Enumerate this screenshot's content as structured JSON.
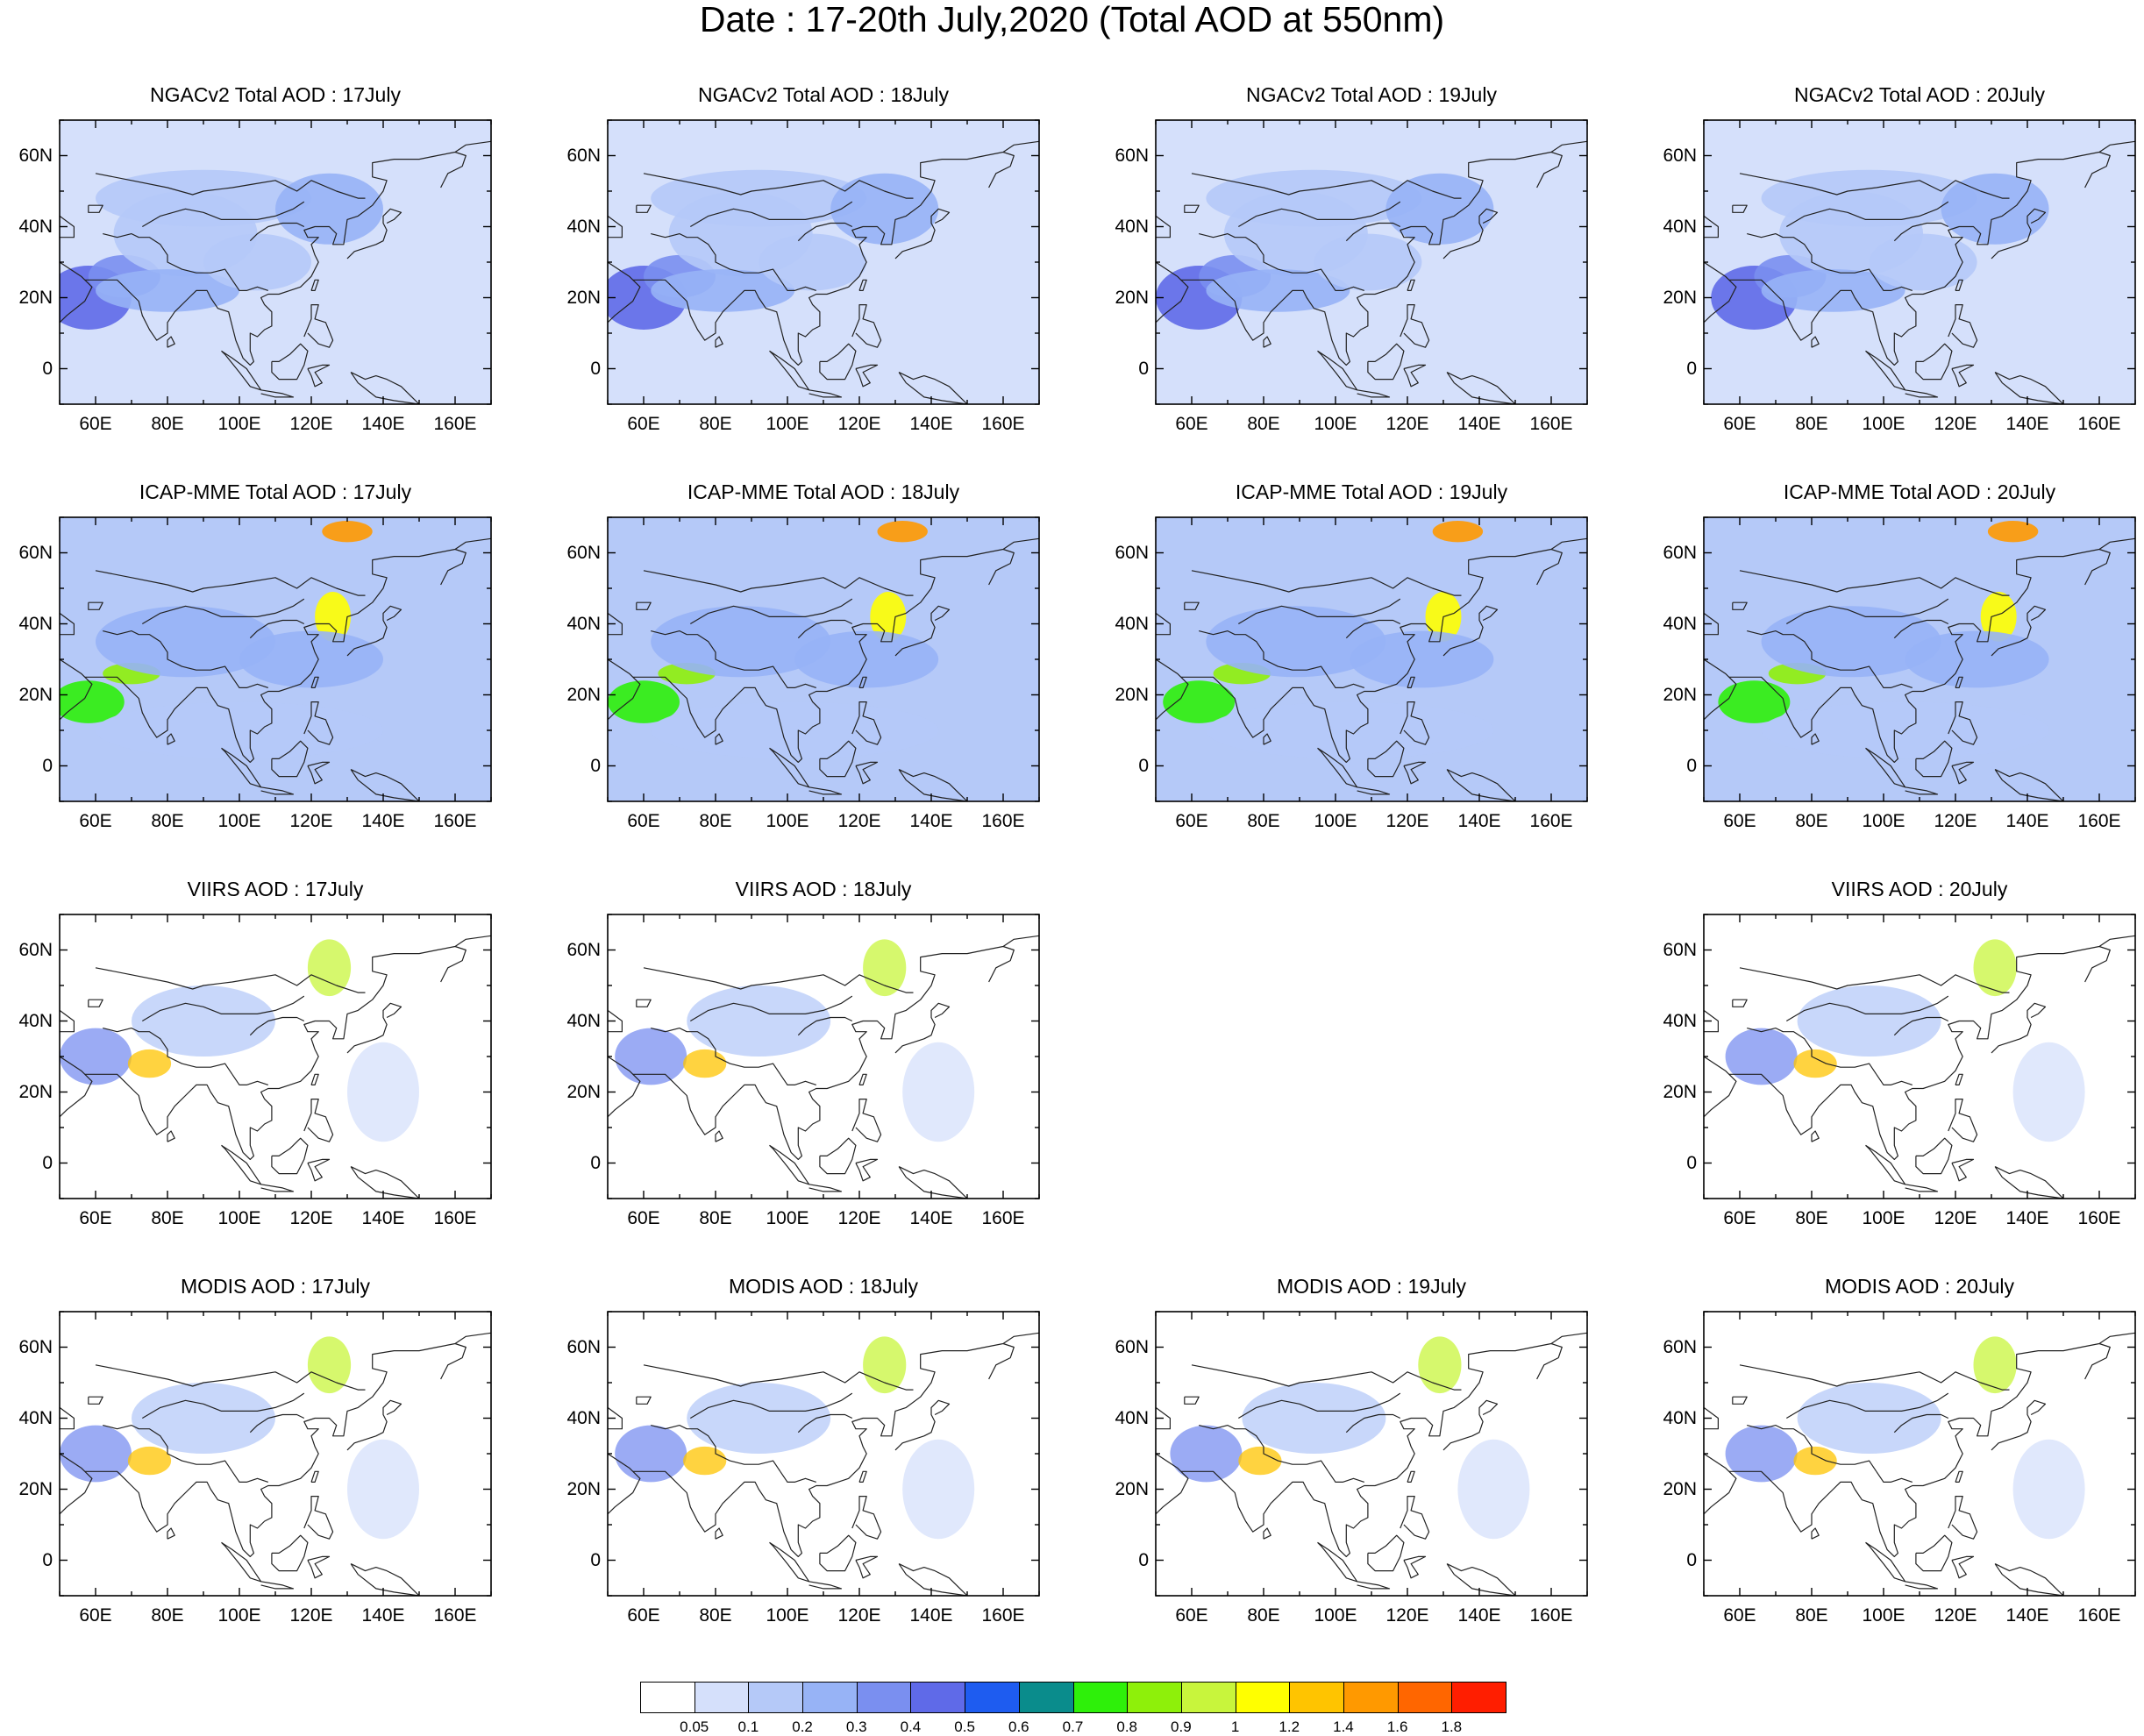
{
  "title": "Date : 17-20th July,2020 (Total AOD at 550nm)",
  "map": {
    "lon_range": [
      50,
      170
    ],
    "lat_range": [
      -10,
      70
    ],
    "lat_ticks": [
      "60N",
      "40N",
      "20N",
      "0"
    ],
    "lon_ticks": [
      "60E",
      "80E",
      "100E",
      "120E",
      "140E",
      "160E"
    ]
  },
  "rows": [
    {
      "name": "ngacv2",
      "panels": [
        {
          "title": "NGACv2 Total AOD : 17July",
          "shown": true
        },
        {
          "title": "NGACv2 Total AOD : 18July",
          "shown": true
        },
        {
          "title": "NGACv2 Total AOD : 19July",
          "shown": true
        },
        {
          "title": "NGACv2 Total AOD : 20July",
          "shown": true
        }
      ]
    },
    {
      "name": "icap-mme",
      "panels": [
        {
          "title": "ICAP-MME Total AOD : 17July",
          "shown": true
        },
        {
          "title": "ICAP-MME Total AOD : 18July",
          "shown": true
        },
        {
          "title": "ICAP-MME Total AOD : 19July",
          "shown": true
        },
        {
          "title": "ICAP-MME Total AOD : 20July",
          "shown": true
        }
      ]
    },
    {
      "name": "viirs",
      "panels": [
        {
          "title": "VIIRS AOD : 17July",
          "shown": true
        },
        {
          "title": "VIIRS AOD : 18July",
          "shown": true
        },
        {
          "title": "",
          "shown": false
        },
        {
          "title": "VIIRS AOD : 20July",
          "shown": true
        }
      ]
    },
    {
      "name": "modis",
      "panels": [
        {
          "title": "MODIS AOD : 17July",
          "shown": true
        },
        {
          "title": "MODIS AOD : 18July",
          "shown": true
        },
        {
          "title": "MODIS AOD : 19July",
          "shown": true
        },
        {
          "title": "MODIS AOD : 20July",
          "shown": true
        }
      ]
    }
  ],
  "colorbar": {
    "colors": [
      "#ffffff",
      "#d5e0fb",
      "#b5c9f8",
      "#97b3f6",
      "#7a8ff0",
      "#5f6ae8",
      "#1e5cf0",
      "#0a8c8c",
      "#2ef00a",
      "#8ef00a",
      "#c8f53c",
      "#ffff00",
      "#ffc400",
      "#ff9900",
      "#ff6600",
      "#ff1e00"
    ],
    "labels": [
      "0.05",
      "0.1",
      "0.2",
      "0.3",
      "0.4",
      "0.5",
      "0.6",
      "0.7",
      "0.8",
      "0.9",
      "1",
      "1.2",
      "1.4",
      "1.6",
      "1.8"
    ]
  }
}
